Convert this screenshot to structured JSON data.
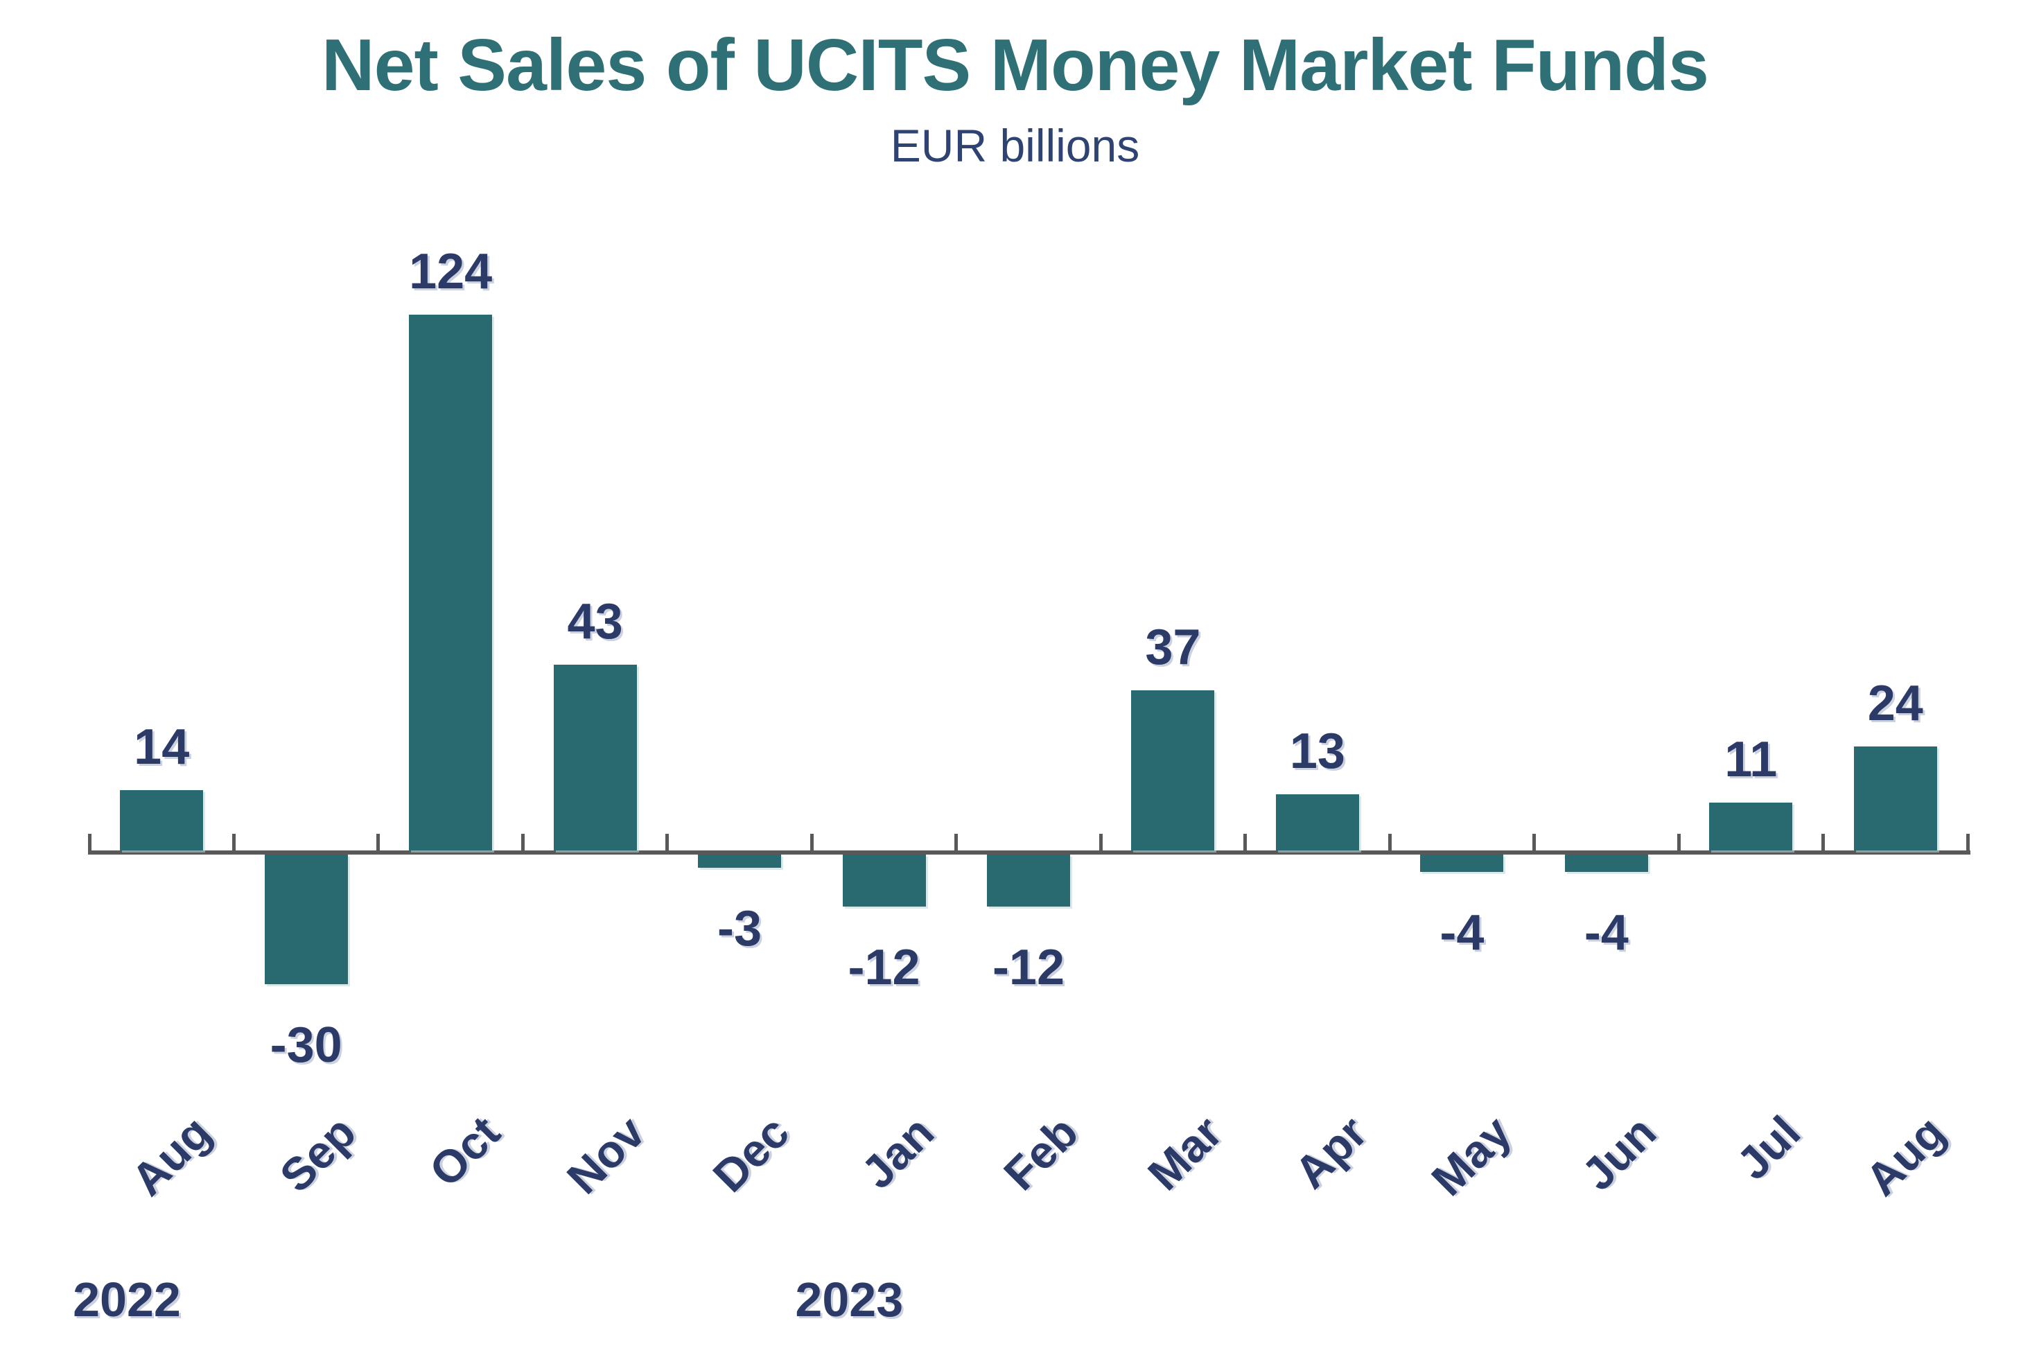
{
  "page": {
    "background": "#FFFFFF"
  },
  "chart_data": {
    "type": "bar",
    "title": "Net Sales of UCITS Money Market Funds",
    "subtitle": "EUR billions",
    "unit": "EUR billions",
    "categories": [
      "Aug",
      "Sep",
      "Oct",
      "Nov",
      "Dec",
      "Jan",
      "Feb",
      "Mar",
      "Apr",
      "May",
      "Jun",
      "Jul",
      "Aug"
    ],
    "values": [
      14,
      -30,
      124,
      43,
      -3,
      -12,
      -12,
      37,
      13,
      -4,
      -4,
      11,
      24
    ],
    "value_labels_shown": true,
    "year_labels": [
      {
        "text": "2022",
        "category_index": 0
      },
      {
        "text": "2023",
        "category_index": 5
      }
    ],
    "grid": false,
    "legend_position": "none",
    "y_axis_shown": false,
    "x_axis": {
      "tick_marks": "between-categories"
    },
    "ylim": [
      -30,
      124
    ],
    "colors": {
      "bar": "#296A70",
      "title": "#2E7076",
      "subtitle": "#2E4372",
      "labels": "#2B3A67",
      "axis": "#595959"
    }
  }
}
